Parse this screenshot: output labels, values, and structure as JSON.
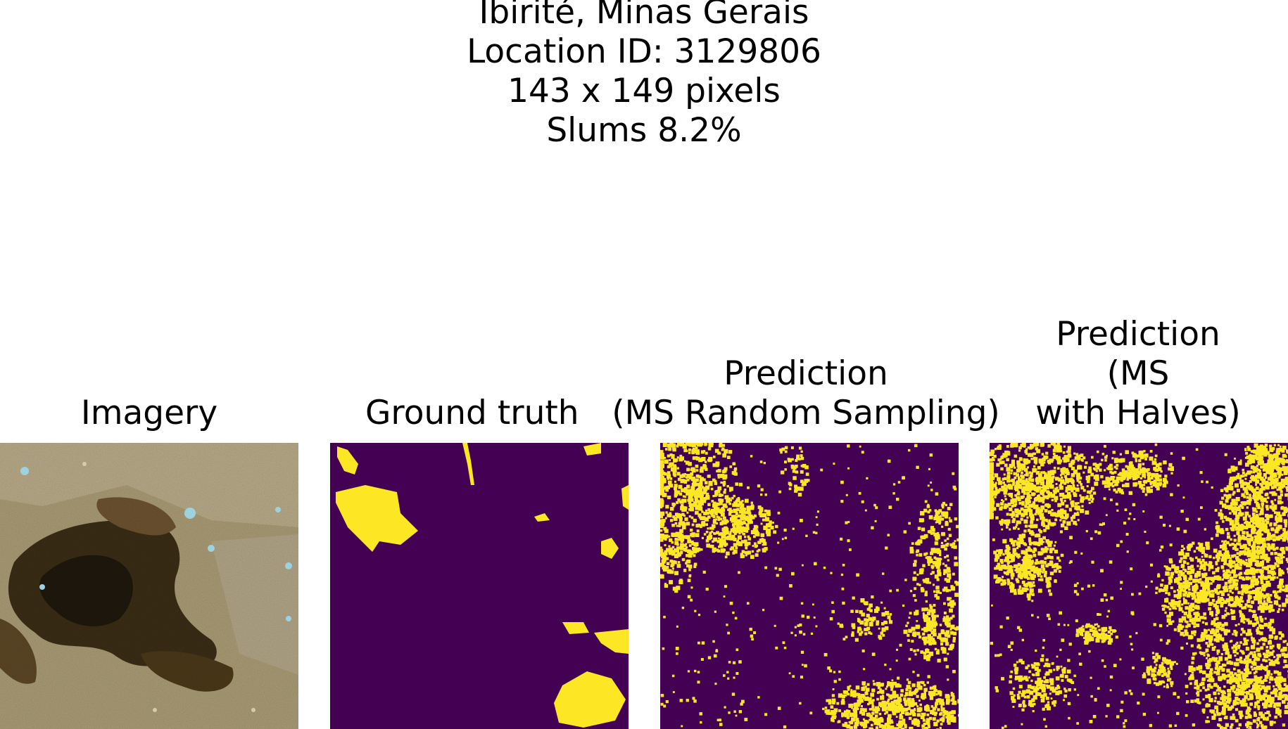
{
  "figure": {
    "suptitle_lines": [
      "Ibirité, Minas Gerais",
      "Location ID: 3129806",
      "143 x 149 pixels",
      "Slums 8.2%"
    ]
  },
  "panels": [
    {
      "title_lines": [
        "Imagery"
      ],
      "kind": "satellite-imagery"
    },
    {
      "title_lines": [
        "Ground truth"
      ],
      "kind": "binary-mask"
    },
    {
      "title_lines": [
        "Prediction",
        "(MS Random Sampling)"
      ],
      "kind": "binary-mask"
    },
    {
      "title_lines": [
        "Prediction",
        "(MS",
        "with Halves)"
      ],
      "kind": "binary-mask"
    }
  ],
  "colors": {
    "mask_background": "#440154",
    "mask_foreground": "#fde725",
    "imagery_base": "#a79a74",
    "imagery_dark": "#3b2e14",
    "imagery_water": "#9fd8e8"
  }
}
